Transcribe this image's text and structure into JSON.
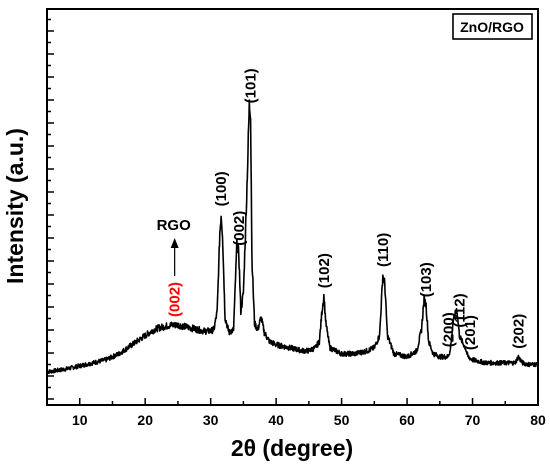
{
  "chart_data": {
    "type": "line",
    "legend": "ZnO/RGO",
    "xlabel": "2θ (degree)",
    "ylabel": "Intensity (a.u.)",
    "xlim": [
      5,
      80
    ],
    "ylim": [
      0,
      100
    ],
    "x_ticks": [
      10,
      20,
      30,
      40,
      50,
      60,
      70,
      80
    ],
    "y_tick_labels_shown": false,
    "grid": false,
    "legend_position": "top-right",
    "series": [
      {
        "name": "ZnO/RGO",
        "color": "#000000",
        "x": [
          5,
          8,
          10,
          12,
          14,
          16,
          18,
          20,
          21,
          22,
          23,
          24,
          25,
          26,
          27,
          28,
          29,
          30,
          30.5,
          31,
          31.4,
          31.6,
          31.8,
          32.2,
          32.8,
          33.5,
          34.0,
          34.3,
          34.6,
          35.0,
          35.5,
          35.9,
          36.1,
          36.3,
          36.7,
          37.2,
          37.7,
          38.2,
          39,
          40,
          42,
          44,
          45,
          46,
          46.6,
          47.0,
          47.3,
          47.6,
          48.2,
          50,
          52,
          54,
          55,
          55.8,
          56.3,
          56.6,
          57.0,
          58,
          60,
          61.5,
          62.2,
          62.6,
          62.9,
          63.3,
          64,
          65,
          66.2,
          66.6,
          67.0,
          67.6,
          68.0,
          68.4,
          68.9,
          69.3,
          70,
          72,
          74,
          75.5,
          76.5,
          77.0,
          77.6,
          78.5,
          80
        ],
        "y": [
          2,
          3,
          4,
          5,
          6,
          8,
          11,
          14,
          15.5,
          16.5,
          17,
          17.5,
          17.5,
          17,
          16.5,
          16,
          15.5,
          15.5,
          16,
          22,
          48,
          54,
          48,
          20,
          15,
          16,
          44,
          41,
          22,
          28,
          60,
          90,
          88,
          40,
          18,
          16,
          20,
          15,
          12,
          11,
          10,
          9,
          9,
          10,
          12,
          22,
          27,
          18,
          10,
          8,
          8,
          9,
          10,
          14,
          34,
          31,
          14,
          8,
          7,
          9,
          16,
          26,
          24,
          12,
          8,
          7,
          7,
          9,
          18,
          23,
          14,
          12,
          10,
          7,
          6,
          5,
          5,
          5,
          5,
          7,
          5,
          4.5,
          4.5
        ]
      }
    ],
    "annotations": [
      {
        "text": "(100)",
        "x": 31.6,
        "color": "#000000"
      },
      {
        "text": "(002)",
        "x": 34.3,
        "color": "#000000"
      },
      {
        "text": "(101)",
        "x": 36.1,
        "color": "#000000"
      },
      {
        "text": "(102)",
        "x": 47.3,
        "color": "#000000"
      },
      {
        "text": "(110)",
        "x": 56.3,
        "color": "#000000"
      },
      {
        "text": "(103)",
        "x": 62.9,
        "color": "#000000"
      },
      {
        "text": "(200)",
        "x": 66.3,
        "color": "#000000"
      },
      {
        "text": "(112)",
        "x": 68.0,
        "color": "#000000"
      },
      {
        "text": "(201)",
        "x": 69.6,
        "color": "#000000"
      },
      {
        "text": "(202)",
        "x": 77.0,
        "color": "#000000"
      },
      {
        "text": "(002)",
        "x": 24.5,
        "color": "#ff0000"
      }
    ],
    "arrow_annotation": {
      "text": "RGO",
      "x": 24.5
    }
  }
}
